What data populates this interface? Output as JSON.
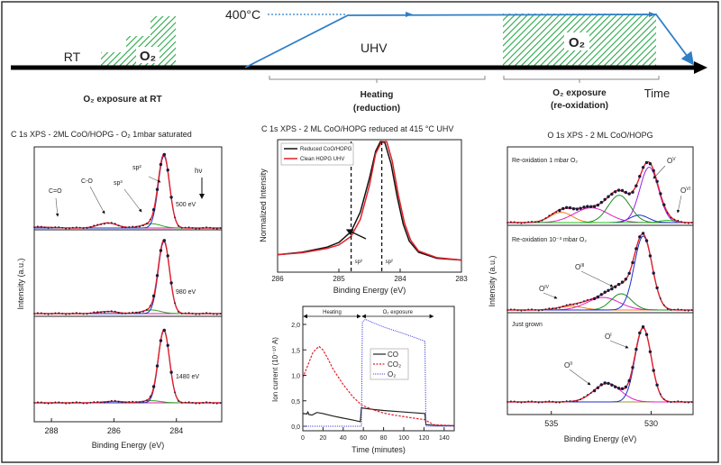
{
  "colors": {
    "timeline_blue": "#2f7fc6",
    "hatch_green": "#2aa84a",
    "envelope_red": "#e0202a",
    "peak_blue": "#1b2fc7",
    "dots": "#1a1a4a"
  },
  "timeline": {
    "rt_label": "RT",
    "o2_label_left": "O₂",
    "temp_label": "400°C",
    "uhv_label": "UHV",
    "o2_label_right": "O₂",
    "time_label": "Time",
    "phase1_label": "O₂ exposure at RT",
    "phase2_line1": "Heating",
    "phase2_line2": "(reduction)",
    "phase3_line1": "O₂ exposure",
    "phase3_line2": "(re-oxidation)"
  },
  "chart_data": [
    {
      "type": "line",
      "title": "C 1s XPS -  2ML CoO/HOPG -  O₂ 1mbar saturated",
      "xlabel": "Binding Energy (eV)",
      "ylabel": "Intensity (a.u.)",
      "xlim": [
        288.55,
        282.55
      ],
      "x_reversed": true,
      "xticks": [
        "288",
        "286",
        "284"
      ],
      "xtick_values": [
        288,
        286,
        284
      ],
      "annotations": {
        "c_eq_o": "C=O",
        "c_o": "C-O",
        "sp3": "sp³",
        "sp2": "sp²",
        "hv": "hν"
      },
      "spectra": [
        {
          "label": "500 eV",
          "components": [
            {
              "center": 288.4,
              "height": 0.012,
              "fwhm": 1.0,
              "color": "#e07a20"
            },
            {
              "center": 286.2,
              "height": 0.07,
              "fwhm": 0.7,
              "color": "#e020a0"
            },
            {
              "center": 284.8,
              "height": 0.06,
              "fwhm": 0.7,
              "color": "#2aa02a"
            },
            {
              "center": 284.4,
              "height": 1.0,
              "fwhm": 0.42,
              "color": "#1b2fc7"
            }
          ]
        },
        {
          "label": "980 eV",
          "components": [
            {
              "center": 286.2,
              "height": 0.03,
              "fwhm": 0.7,
              "color": "#e020a0"
            },
            {
              "center": 284.8,
              "height": 0.05,
              "fwhm": 0.7,
              "color": "#2aa02a"
            },
            {
              "center": 284.4,
              "height": 1.0,
              "fwhm": 0.42,
              "color": "#1b2fc7"
            }
          ]
        },
        {
          "label": "1480 eV",
          "components": [
            {
              "center": 286.0,
              "height": 0.02,
              "fwhm": 0.8,
              "color": "#e020a0"
            },
            {
              "center": 284.8,
              "height": 0.03,
              "fwhm": 0.7,
              "color": "#2aa02a"
            },
            {
              "center": 284.4,
              "height": 1.0,
              "fwhm": 0.42,
              "color": "#1b2fc7"
            }
          ]
        }
      ]
    },
    {
      "type": "line",
      "title": "C 1s XPS - 2 ML CoO/HOPG reduced at 415 °C UHV",
      "xlabel": "Binding Energy (eV)",
      "ylabel": "Normalized Intensity",
      "xlim": [
        286,
        283
      ],
      "x_reversed": true,
      "xticks": [
        "286",
        "285",
        "284",
        "283"
      ],
      "xtick_values": [
        286,
        285,
        284,
        283
      ],
      "markers": [
        {
          "x": 284.8,
          "label": "sp³"
        },
        {
          "x": 284.3,
          "label": "sp²"
        }
      ],
      "legend": "top-left",
      "series": [
        {
          "name": "Reduced CoO/HOPG",
          "color": "#111111",
          "points": [
            [
              286,
              0.07
            ],
            [
              285.6,
              0.09
            ],
            [
              285.2,
              0.13
            ],
            [
              285,
              0.17
            ],
            [
              284.8,
              0.26
            ],
            [
              284.65,
              0.42
            ],
            [
              284.5,
              0.7
            ],
            [
              284.4,
              0.92
            ],
            [
              284.32,
              1.0
            ],
            [
              284.25,
              0.99
            ],
            [
              284.15,
              0.82
            ],
            [
              284.05,
              0.55
            ],
            [
              283.95,
              0.32
            ],
            [
              283.85,
              0.18
            ],
            [
              283.7,
              0.09
            ],
            [
              283.4,
              0.04
            ],
            [
              283,
              0.025
            ]
          ]
        },
        {
          "name": "Clean HOPG UHV",
          "color": "#e0202a",
          "points": [
            [
              286,
              0.07
            ],
            [
              285.6,
              0.085
            ],
            [
              285.2,
              0.12
            ],
            [
              285,
              0.15
            ],
            [
              284.8,
              0.22
            ],
            [
              284.65,
              0.36
            ],
            [
              284.5,
              0.64
            ],
            [
              284.4,
              0.9
            ],
            [
              284.3,
              1.0
            ],
            [
              284.22,
              1.0
            ],
            [
              284.13,
              0.84
            ],
            [
              284.03,
              0.56
            ],
            [
              283.93,
              0.33
            ],
            [
              283.83,
              0.19
            ],
            [
              283.7,
              0.1
            ],
            [
              283.4,
              0.045
            ],
            [
              283,
              0.025
            ]
          ]
        }
      ]
    },
    {
      "type": "line",
      "xlabel": "Time (minutes)",
      "ylabel": "Ion current (10⁻¹⁰ A)",
      "xlim": [
        0,
        150
      ],
      "ylim": [
        0,
        2.2
      ],
      "xticks": [
        "0",
        "20",
        "40",
        "60",
        "80",
        "100",
        "120",
        "140"
      ],
      "xtick_values": [
        0,
        20,
        40,
        60,
        80,
        100,
        120,
        140
      ],
      "yticks": [
        "0,0",
        "0,5",
        "1,0",
        "1,5",
        "2,0"
      ],
      "ytick_values": [
        0,
        0.5,
        1,
        1.5,
        2
      ],
      "phases": [
        {
          "label": "Heating",
          "from": 0,
          "to": 58
        },
        {
          "label": "O₂ exposure",
          "from": 58,
          "to": 130
        }
      ],
      "legend": "center-right",
      "series": [
        {
          "name": "CO",
          "color": "#222222",
          "dash": "solid",
          "points": [
            [
              0,
              0.25
            ],
            [
              4,
              0.24
            ],
            [
              5,
              0.28
            ],
            [
              6,
              0.23
            ],
            [
              9,
              0.22
            ],
            [
              14,
              0.27
            ],
            [
              20,
              0.25
            ],
            [
              30,
              0.2
            ],
            [
              40,
              0.16
            ],
            [
              50,
              0.12
            ],
            [
              57,
              0.09
            ],
            [
              58,
              0.36
            ],
            [
              70,
              0.33
            ],
            [
              80,
              0.31
            ],
            [
              100,
              0.28
            ],
            [
              121,
              0.25
            ],
            [
              122,
              0.03
            ],
            [
              135,
              0.015
            ],
            [
              150,
              0.01
            ]
          ]
        },
        {
          "name": "CO₂",
          "color": "#e0202a",
          "dash": "dashed",
          "points": [
            [
              0,
              0.95
            ],
            [
              5,
              1.2
            ],
            [
              10,
              1.45
            ],
            [
              16,
              1.57
            ],
            [
              20,
              1.5
            ],
            [
              25,
              1.32
            ],
            [
              30,
              1.12
            ],
            [
              40,
              0.82
            ],
            [
              50,
              0.57
            ],
            [
              58,
              0.42
            ],
            [
              70,
              0.32
            ],
            [
              80,
              0.26
            ],
            [
              90,
              0.22
            ],
            [
              110,
              0.16
            ],
            [
              121,
              0.13
            ],
            [
              125,
              0.08
            ],
            [
              130,
              0.03
            ],
            [
              150,
              0.01
            ]
          ]
        },
        {
          "name": "O₂",
          "color": "#4040e0",
          "dash": "dotted",
          "points": [
            [
              0,
              0.0
            ],
            [
              58,
              0.0
            ],
            [
              59,
              2.05
            ],
            [
              62,
              2.1
            ],
            [
              70,
              2.03
            ],
            [
              80,
              1.95
            ],
            [
              100,
              1.82
            ],
            [
              121,
              1.67
            ],
            [
              122,
              0.0
            ],
            [
              150,
              0.0
            ]
          ]
        }
      ]
    },
    {
      "type": "line",
      "title": "O 1s XPS - 2 ML CoO/HOPG",
      "xlabel": "Binding Energy (eV)",
      "ylabel": "Intensity (a.u.)",
      "xlim": [
        537.2,
        527.9
      ],
      "x_reversed": true,
      "xticks": [
        "535",
        "530"
      ],
      "xtick_values": [
        535,
        530
      ],
      "spectra": [
        {
          "label": "Re-oxidation 1 mbar O₂",
          "annotations": [
            {
              "base": "O",
              "sup": "V"
            },
            {
              "base": "O",
              "sup": "VI"
            }
          ],
          "components": [
            {
              "center": 534.5,
              "height": 0.14,
              "fwhm": 1.3,
              "color": "#f08020"
            },
            {
              "center": 533.0,
              "height": 0.2,
              "fwhm": 2.0,
              "color": "#e020c0"
            },
            {
              "center": 531.6,
              "height": 0.37,
              "fwhm": 1.3,
              "color": "#208a20"
            },
            {
              "center": 530.6,
              "height": 0.1,
              "fwhm": 1.1,
              "color": "#1b2fc7"
            },
            {
              "center": 530.1,
              "height": 0.75,
              "fwhm": 1.1,
              "color": "#9a20e0"
            },
            {
              "center": 529.2,
              "height": 0.03,
              "fwhm": 0.9,
              "color": "#20c020"
            }
          ]
        },
        {
          "label": "Re-oxidation 10⁻³ mbar O₂",
          "annotations": [
            {
              "base": "O",
              "sup": "IV"
            },
            {
              "base": "O",
              "sup": "III"
            }
          ],
          "components": [
            {
              "center": 534.0,
              "height": 0.05,
              "fwhm": 1.5,
              "color": "#f08020"
            },
            {
              "center": 532.4,
              "height": 0.17,
              "fwhm": 1.9,
              "color": "#e020c0"
            },
            {
              "center": 531.5,
              "height": 0.22,
              "fwhm": 1.2,
              "color": "#208a20"
            },
            {
              "center": 530.4,
              "height": 1.0,
              "fwhm": 1.05,
              "color": "#1b2fc7"
            }
          ]
        },
        {
          "label": "Just grown",
          "annotations": [
            {
              "base": "O",
              "sup": "I"
            },
            {
              "base": "O",
              "sup": "II"
            }
          ],
          "components": [
            {
              "center": 532.2,
              "height": 0.25,
              "fwhm": 1.6,
              "color": "#e020c0"
            },
            {
              "center": 530.4,
              "height": 1.0,
              "fwhm": 0.95,
              "color": "#1b2fc7"
            }
          ]
        }
      ]
    }
  ]
}
